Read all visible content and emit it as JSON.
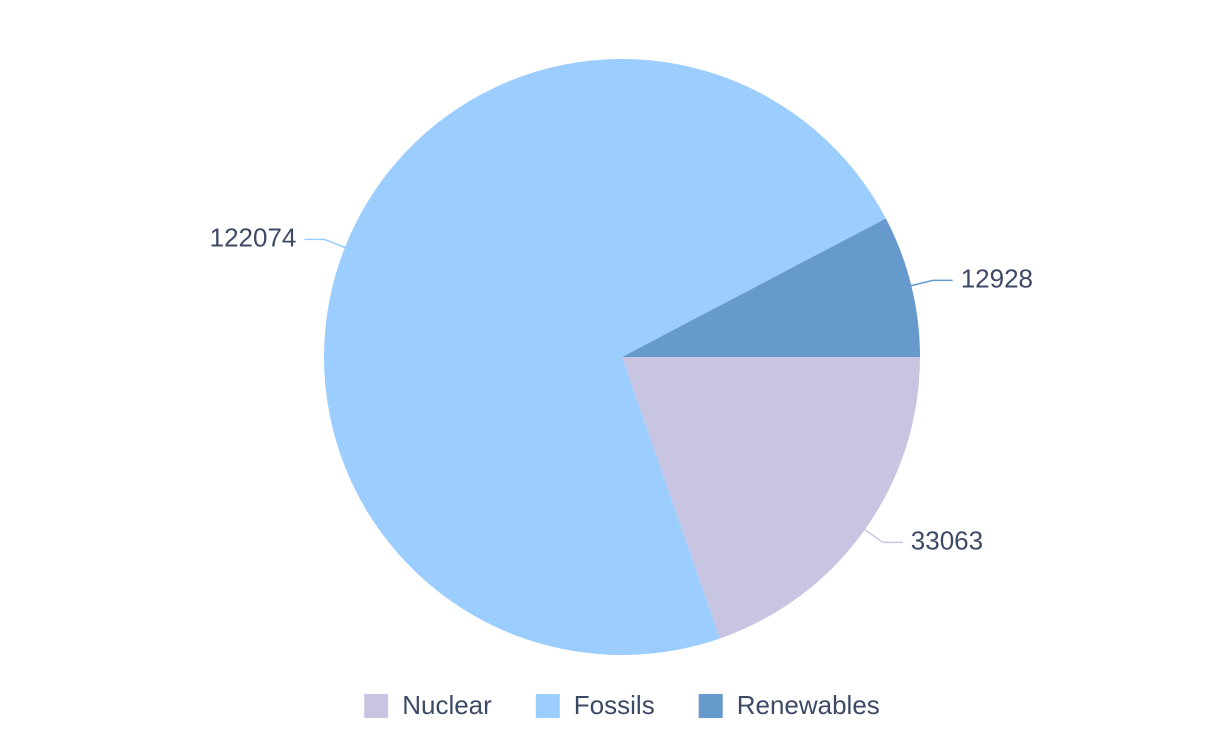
{
  "chart_data": {
    "type": "pie",
    "categories": [
      "Nuclear",
      "Fossils",
      "Renewables"
    ],
    "values": [
      33063,
      122074,
      12928
    ],
    "colors": [
      "#c8c5e2",
      "#9bcdfe",
      "#6699cc"
    ],
    "legend": "bottom"
  }
}
